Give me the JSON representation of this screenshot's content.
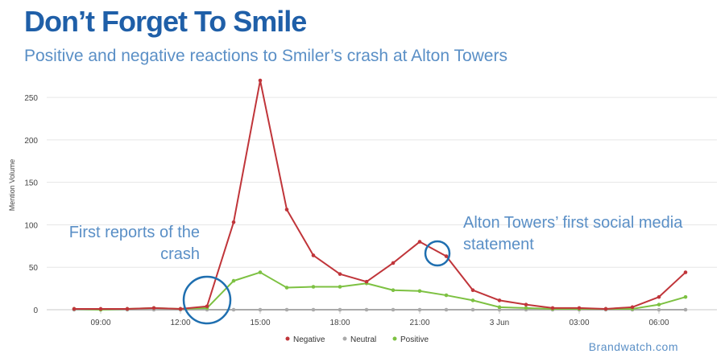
{
  "header": {
    "title": "Don’t Forget To Smile",
    "subtitle": "Positive and negative reactions to Smiler’s crash at Alton Towers"
  },
  "annotations": [
    {
      "text": "First reports of the crash"
    },
    {
      "text": "Alton Towers’ first social media statement"
    }
  ],
  "credit": "Brandwatch.com",
  "chart_data": {
    "type": "line",
    "title": "Don’t Forget To Smile",
    "subtitle": "Positive and negative reactions to Smiler’s crash at Alton Towers",
    "xlabel": "",
    "ylabel": "Mention Volume",
    "ylim": [
      0,
      270
    ],
    "yticks": [
      0,
      50,
      100,
      150,
      200,
      250
    ],
    "grid": true,
    "legend_position": "bottom",
    "x_tick_labels": [
      {
        "label": "09:00",
        "index": 1
      },
      {
        "label": "12:00",
        "index": 4
      },
      {
        "label": "15:00",
        "index": 7
      },
      {
        "label": "18:00",
        "index": 10
      },
      {
        "label": "21:00",
        "index": 13
      },
      {
        "label": "3 Jun",
        "index": 16
      },
      {
        "label": "03:00",
        "index": 19
      },
      {
        "label": "06:00",
        "index": 22
      }
    ],
    "series": [
      {
        "name": "Negative",
        "color": "#c0353a",
        "values": [
          1,
          1,
          1,
          2,
          1,
          4,
          103,
          270,
          118,
          64,
          42,
          33,
          55,
          80,
          63,
          23,
          11,
          6,
          2,
          2,
          1,
          3,
          15,
          44
        ]
      },
      {
        "name": "Neutral",
        "color": "#aaaaaa",
        "values": [
          0,
          0,
          0,
          0,
          0,
          0,
          0,
          0,
          0,
          0,
          0,
          0,
          0,
          0,
          0,
          0,
          0,
          0,
          0,
          0,
          0,
          0,
          0,
          0
        ]
      },
      {
        "name": "Positive",
        "color": "#7dc142",
        "values": [
          1,
          0,
          1,
          2,
          1,
          2,
          34,
          44,
          26,
          27,
          27,
          31,
          23,
          22,
          17,
          11,
          3,
          2,
          1,
          1,
          1,
          1,
          6,
          15
        ]
      }
    ]
  }
}
